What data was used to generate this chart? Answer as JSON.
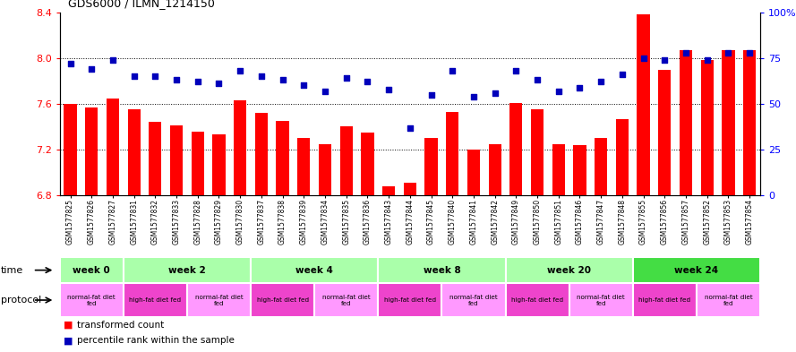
{
  "title": "GDS6000 / ILMN_1214150",
  "samples": [
    "GSM1577825",
    "GSM1577826",
    "GSM1577827",
    "GSM1577831",
    "GSM1577832",
    "GSM1577833",
    "GSM1577828",
    "GSM1577829",
    "GSM1577830",
    "GSM1577837",
    "GSM1577838",
    "GSM1577839",
    "GSM1577834",
    "GSM1577835",
    "GSM1577836",
    "GSM1577843",
    "GSM1577844",
    "GSM1577845",
    "GSM1577840",
    "GSM1577841",
    "GSM1577842",
    "GSM1577849",
    "GSM1577850",
    "GSM1577851",
    "GSM1577846",
    "GSM1577847",
    "GSM1577848",
    "GSM1577855",
    "GSM1577856",
    "GSM1577857",
    "GSM1577852",
    "GSM1577853",
    "GSM1577854"
  ],
  "bar_values": [
    7.6,
    7.57,
    7.65,
    7.55,
    7.44,
    7.41,
    7.36,
    7.33,
    7.63,
    7.52,
    7.45,
    7.3,
    7.25,
    7.4,
    7.35,
    6.88,
    6.91,
    7.3,
    7.53,
    7.2,
    7.25,
    7.61,
    7.55,
    7.25,
    7.24,
    7.3,
    7.47,
    8.38,
    7.9,
    8.07,
    7.98,
    8.07,
    8.07
  ],
  "dot_values": [
    72,
    69,
    74,
    65,
    65,
    63,
    62,
    61,
    68,
    65,
    63,
    60,
    57,
    64,
    62,
    58,
    37,
    55,
    68,
    54,
    56,
    68,
    63,
    57,
    59,
    62,
    66,
    75,
    74,
    78,
    74,
    78,
    78
  ],
  "ylim_left": [
    6.8,
    8.4
  ],
  "ylim_right": [
    0,
    100
  ],
  "yticks_left": [
    6.8,
    7.2,
    7.6,
    8.0,
    8.4
  ],
  "yticks_right": [
    0,
    25,
    50,
    75,
    100
  ],
  "yticklabels_right": [
    "0",
    "25",
    "50",
    "75",
    "100%"
  ],
  "bar_color": "#FF0000",
  "dot_color": "#0000BB",
  "grid_values": [
    8.0,
    7.6,
    7.2
  ],
  "time_groups": [
    {
      "label": "week 0",
      "start": 0,
      "end": 3,
      "color": "#AAFFAA"
    },
    {
      "label": "week 2",
      "start": 3,
      "end": 9,
      "color": "#AAFFAA"
    },
    {
      "label": "week 4",
      "start": 9,
      "end": 15,
      "color": "#AAFFAA"
    },
    {
      "label": "week 8",
      "start": 15,
      "end": 21,
      "color": "#AAFFAA"
    },
    {
      "label": "week 20",
      "start": 21,
      "end": 27,
      "color": "#AAFFAA"
    },
    {
      "label": "week 24",
      "start": 27,
      "end": 33,
      "color": "#44DD44"
    }
  ],
  "protocol_groups": [
    {
      "label": "normal-fat diet\nfed",
      "start": 0,
      "end": 3,
      "color": "#FF99FF"
    },
    {
      "label": "high-fat diet fed",
      "start": 3,
      "end": 6,
      "color": "#EE44CC"
    },
    {
      "label": "normal-fat diet\nfed",
      "start": 6,
      "end": 9,
      "color": "#FF99FF"
    },
    {
      "label": "high-fat diet fed",
      "start": 9,
      "end": 12,
      "color": "#EE44CC"
    },
    {
      "label": "normal-fat diet\nfed",
      "start": 12,
      "end": 15,
      "color": "#FF99FF"
    },
    {
      "label": "high-fat diet fed",
      "start": 15,
      "end": 18,
      "color": "#EE44CC"
    },
    {
      "label": "normal-fat diet\nfed",
      "start": 18,
      "end": 21,
      "color": "#FF99FF"
    },
    {
      "label": "high-fat diet fed",
      "start": 21,
      "end": 24,
      "color": "#EE44CC"
    },
    {
      "label": "normal-fat diet\nfed",
      "start": 24,
      "end": 27,
      "color": "#FF99FF"
    },
    {
      "label": "high-fat diet fed",
      "start": 27,
      "end": 30,
      "color": "#EE44CC"
    },
    {
      "label": "normal-fat diet\nfed",
      "start": 30,
      "end": 33,
      "color": "#FF99FF"
    }
  ]
}
